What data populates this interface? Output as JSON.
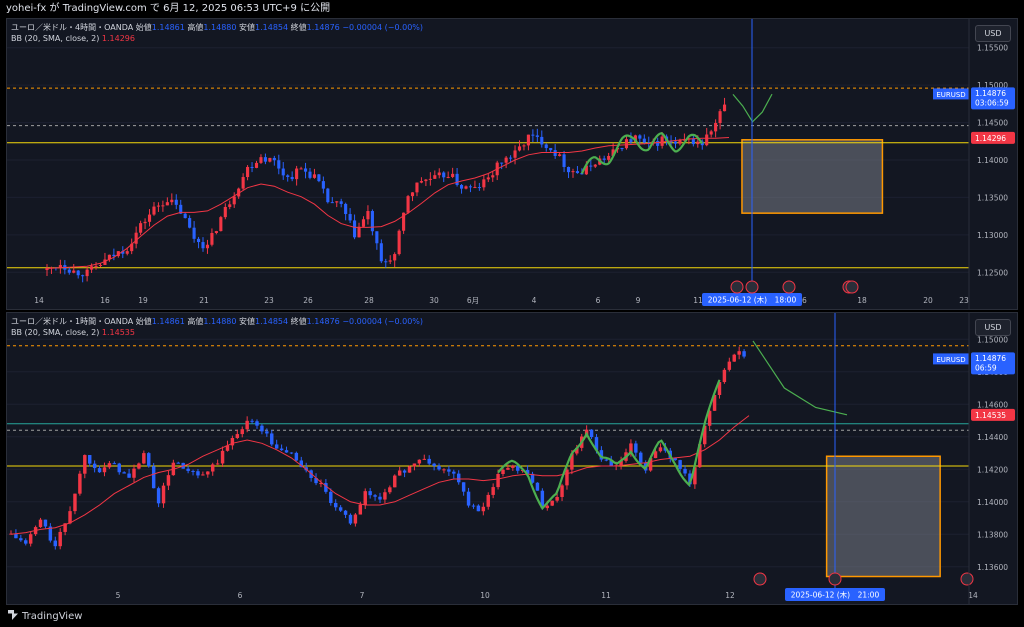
{
  "header": {
    "text": "yohei-fx が TradingView.com で 6月 12, 2025 06:53 UTC+9 に公開"
  },
  "footer": {
    "brand": "TradingView"
  },
  "colors": {
    "up": "#f23645",
    "down": "#2962ff",
    "bb": "#f23645",
    "yellow": "#f5d90a",
    "orange": "#ff9800",
    "green": "#4caf50",
    "teal": "#26a69a",
    "bg": "#131722"
  },
  "panels": [
    {
      "legend_line1": "ユーロ／米ドル・4時間・OANDA",
      "legend_ohlc": [
        {
          "label": "始値",
          "value": "1.14861"
        },
        {
          "label": "高値",
          "value": "1.14880"
        },
        {
          "label": "安値",
          "value": "1.14854"
        },
        {
          "label": "終値",
          "value": "1.14876"
        }
      ],
      "legend_change": "−0.00004 (−0.00%)",
      "legend_bb_label": "BB (20, SMA, close, 2)",
      "legend_bb_value": "1.14296",
      "currency_button": "USD",
      "symbol_tag": "EURUSD",
      "price_tag": "1.14876",
      "countdown": "03:06:59",
      "bb_tag": "1.14296",
      "crosshair_label": "2025-06-12 (木)　18:00",
      "y_ticks": [
        "1.15500",
        "1.15000",
        "1.14500",
        "1.14000",
        "1.13500",
        "1.13000",
        "1.12500"
      ],
      "x_ticks": [
        "14",
        "16",
        "19",
        "21",
        "23",
        "26",
        "28",
        "30",
        "6月",
        "4",
        "6",
        "9",
        "11",
        "16",
        "18",
        "20",
        "23"
      ]
    },
    {
      "legend_line1": "ユーロ／米ドル・1時間・OANDA",
      "legend_ohlc": [
        {
          "label": "始値",
          "value": "1.14861"
        },
        {
          "label": "高値",
          "value": "1.14880"
        },
        {
          "label": "安値",
          "value": "1.14854"
        },
        {
          "label": "終値",
          "value": "1.14876"
        }
      ],
      "legend_change": "−0.00004 (−0.00%)",
      "legend_bb_label": "BB (20, SMA, close, 2)",
      "legend_bb_value": "1.14535",
      "currency_button": "USD",
      "symbol_tag": "EURUSD",
      "price_tag": "1.14876",
      "countdown": "06:59",
      "bb_tag": "1.14535",
      "crosshair_label": "2025-06-12 (木)　21:00",
      "y_ticks": [
        "1.15000",
        "1.14800",
        "1.14600",
        "1.14400",
        "1.14200",
        "1.14000",
        "1.13800",
        "1.13600"
      ],
      "x_ticks": [
        "5",
        "6",
        "7",
        "10",
        "11",
        "12",
        "14"
      ]
    }
  ],
  "chart_data": [
    {
      "type": "line",
      "title": "ユーロ／米ドル・4時間・OANDA",
      "ylim": [
        1.1225,
        1.1575
      ],
      "horizontal_lines": [
        {
          "price": 1.1496,
          "style": "dashed",
          "color": "#ff9800"
        },
        {
          "price": 1.1446,
          "style": "dashed",
          "color": "#a0a0a0"
        },
        {
          "price": 1.1423,
          "style": "solid",
          "color": "#f5d90a"
        },
        {
          "price": 1.1256,
          "style": "solid",
          "color": "#f5d90a"
        }
      ],
      "target_box": {
        "price_top": 1.1427,
        "price_bottom": 1.1329,
        "x_start_frac": 0.764,
        "x_end_frac": 0.91
      },
      "close_path": [
        1.1253,
        1.1262,
        1.1251,
        1.1249,
        1.1261,
        1.1273,
        1.1283,
        1.1312,
        1.1335,
        1.1348,
        1.1331,
        1.1296,
        1.1284,
        1.1323,
        1.1356,
        1.1389,
        1.1405,
        1.1398,
        1.1376,
        1.1388,
        1.1378,
        1.1345,
        1.1338,
        1.1301,
        1.1329,
        1.1261,
        1.1273,
        1.1353,
        1.1373,
        1.1375,
        1.1382,
        1.1364,
        1.1361,
        1.1375,
        1.1399,
        1.1408,
        1.1431,
        1.1426,
        1.141,
        1.1388,
        1.1382,
        1.1398,
        1.1404,
        1.1421,
        1.143,
        1.1417,
        1.1428,
        1.142,
        1.1426,
        1.1422,
        1.1448,
        1.1488
      ],
      "bb_basis": [
        1.1255,
        1.1256,
        1.1257,
        1.1258,
        1.1262,
        1.127,
        1.1282,
        1.1298,
        1.1313,
        1.1325,
        1.133,
        1.133,
        1.1332,
        1.1341,
        1.1352,
        1.1363,
        1.1368,
        1.1365,
        1.1357,
        1.1351,
        1.1341,
        1.1326,
        1.1315,
        1.131,
        1.131,
        1.1311,
        1.1318,
        1.1329,
        1.1342,
        1.1356,
        1.1367,
        1.1372,
        1.1376,
        1.1382,
        1.1391,
        1.14,
        1.1407,
        1.141,
        1.141,
        1.141,
        1.1412,
        1.1416,
        1.1419,
        1.142,
        1.1421,
        1.1422,
        1.1424,
        1.1426,
        1.1428,
        1.1429,
        1.1429,
        1.143
      ],
      "projection": [
        1.14876,
        1.1472,
        1.1451,
        1.1464,
        1.1488
      ]
    },
    {
      "type": "line",
      "title": "ユーロ／米ドル・1時間・OANDA",
      "ylim": [
        1.135,
        1.151
      ],
      "horizontal_lines": [
        {
          "price": 1.1496,
          "style": "dashed",
          "color": "#ff9800"
        },
        {
          "price": 1.1448,
          "style": "solid",
          "color": "#26a69a"
        },
        {
          "price": 1.1444,
          "style": "dashed",
          "color": "#a0a0a0"
        },
        {
          "price": 1.1422,
          "style": "solid",
          "color": "#f5d90a"
        }
      ],
      "target_box": {
        "price_top": 1.1428,
        "price_bottom": 1.1354,
        "x_start_frac": 0.852,
        "x_end_frac": 0.97
      },
      "close_path": [
        1.138,
        1.1374,
        1.1389,
        1.1372,
        1.1395,
        1.1428,
        1.142,
        1.1423,
        1.1414,
        1.143,
        1.14,
        1.1425,
        1.1418,
        1.1415,
        1.1425,
        1.1439,
        1.145,
        1.1445,
        1.1432,
        1.143,
        1.1418,
        1.141,
        1.1395,
        1.1388,
        1.1405,
        1.1402,
        1.1415,
        1.1422,
        1.1426,
        1.142,
        1.1418,
        1.1398,
        1.1395,
        1.1418,
        1.1422,
        1.1419,
        1.1398,
        1.1402,
        1.143,
        1.1445,
        1.1425,
        1.1421,
        1.1434,
        1.142,
        1.1435,
        1.1425,
        1.1412,
        1.1445,
        1.1475,
        1.1492,
        1.1488
      ],
      "bb_basis": [
        1.138,
        1.1381,
        1.1383,
        1.1384,
        1.1387,
        1.1392,
        1.1398,
        1.1405,
        1.141,
        1.1415,
        1.1418,
        1.142,
        1.1423,
        1.1428,
        1.1432,
        1.1436,
        1.1438,
        1.1436,
        1.1432,
        1.1427,
        1.142,
        1.1412,
        1.1405,
        1.14,
        1.1398,
        1.1398,
        1.14,
        1.1404,
        1.1408,
        1.1412,
        1.1414,
        1.1414,
        1.1413,
        1.1414,
        1.1416,
        1.1417,
        1.1416,
        1.1416,
        1.1418,
        1.1421,
        1.1422,
        1.1422,
        1.1423,
        1.1424,
        1.1426,
        1.1427,
        1.1428,
        1.1432,
        1.1438,
        1.1446,
        1.1453
      ],
      "projection": [
        1.1499,
        1.147,
        1.1458,
        1.14535
      ]
    }
  ]
}
